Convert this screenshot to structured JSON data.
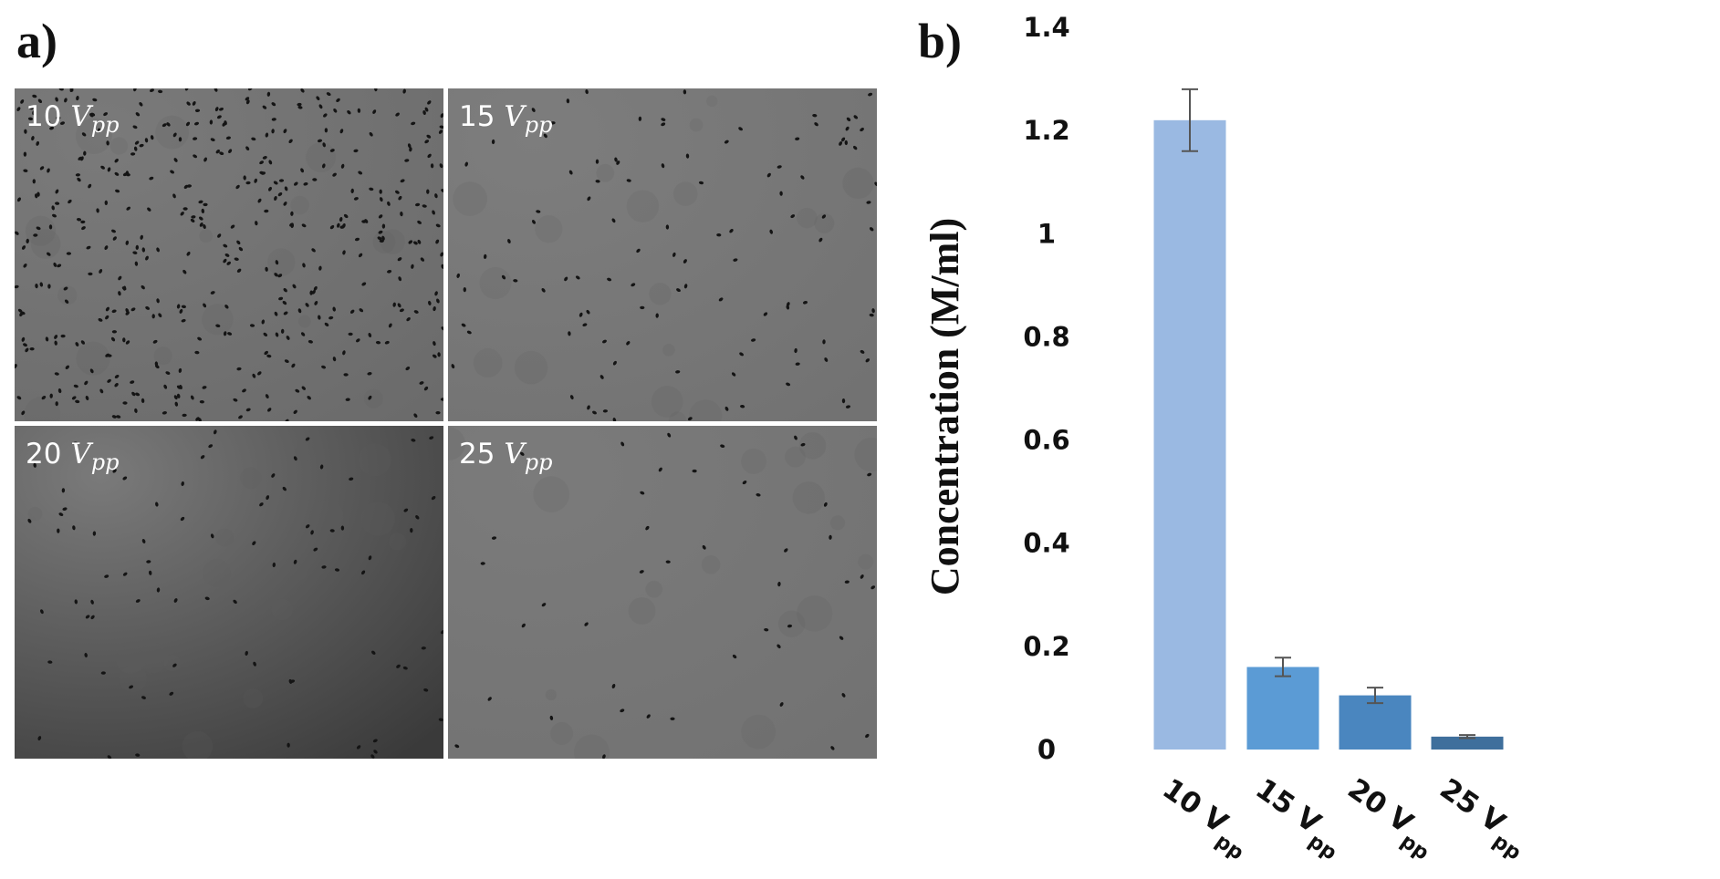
{
  "panels": {
    "a_label": "a)",
    "b_label": "b)"
  },
  "micrographs": [
    {
      "value": "10",
      "symbol": "V",
      "subscript": "pp",
      "cell_count": 460
    },
    {
      "value": "15",
      "symbol": "V",
      "subscript": "pp",
      "cell_count": 110
    },
    {
      "value": "20",
      "symbol": "V",
      "subscript": "pp",
      "cell_count": 85
    },
    {
      "value": "25",
      "symbol": "V",
      "subscript": "pp",
      "cell_count": 45
    }
  ],
  "chart_data": {
    "type": "bar",
    "title": "",
    "xlabel": "",
    "ylabel": "Concentration (M/ml)",
    "categories": [
      "10 V pp",
      "15 V pp",
      "20 V pp",
      "25 V pp"
    ],
    "category_parts": [
      {
        "main": "10 V",
        "sub": "pp"
      },
      {
        "main": "15 V",
        "sub": "pp"
      },
      {
        "main": "20 V",
        "sub": "pp"
      },
      {
        "main": "25 V",
        "sub": "pp"
      }
    ],
    "values": [
      1.22,
      0.16,
      0.105,
      0.025
    ],
    "error_bars": [
      0.06,
      0.018,
      0.015,
      0.003
    ],
    "colors": [
      "#9AB9E2",
      "#5B9BD5",
      "#4A86BF",
      "#3F6F9C"
    ],
    "ylim": [
      0,
      1.4
    ],
    "yticks": [
      0,
      0.2,
      0.4,
      0.6,
      0.8,
      1,
      1.2,
      1.4
    ],
    "ytick_labels": [
      "0",
      "0.2",
      "0.4",
      "0.6",
      "0.8",
      "1",
      "1.2",
      "1.4"
    ],
    "grid": false,
    "legend": "none"
  }
}
